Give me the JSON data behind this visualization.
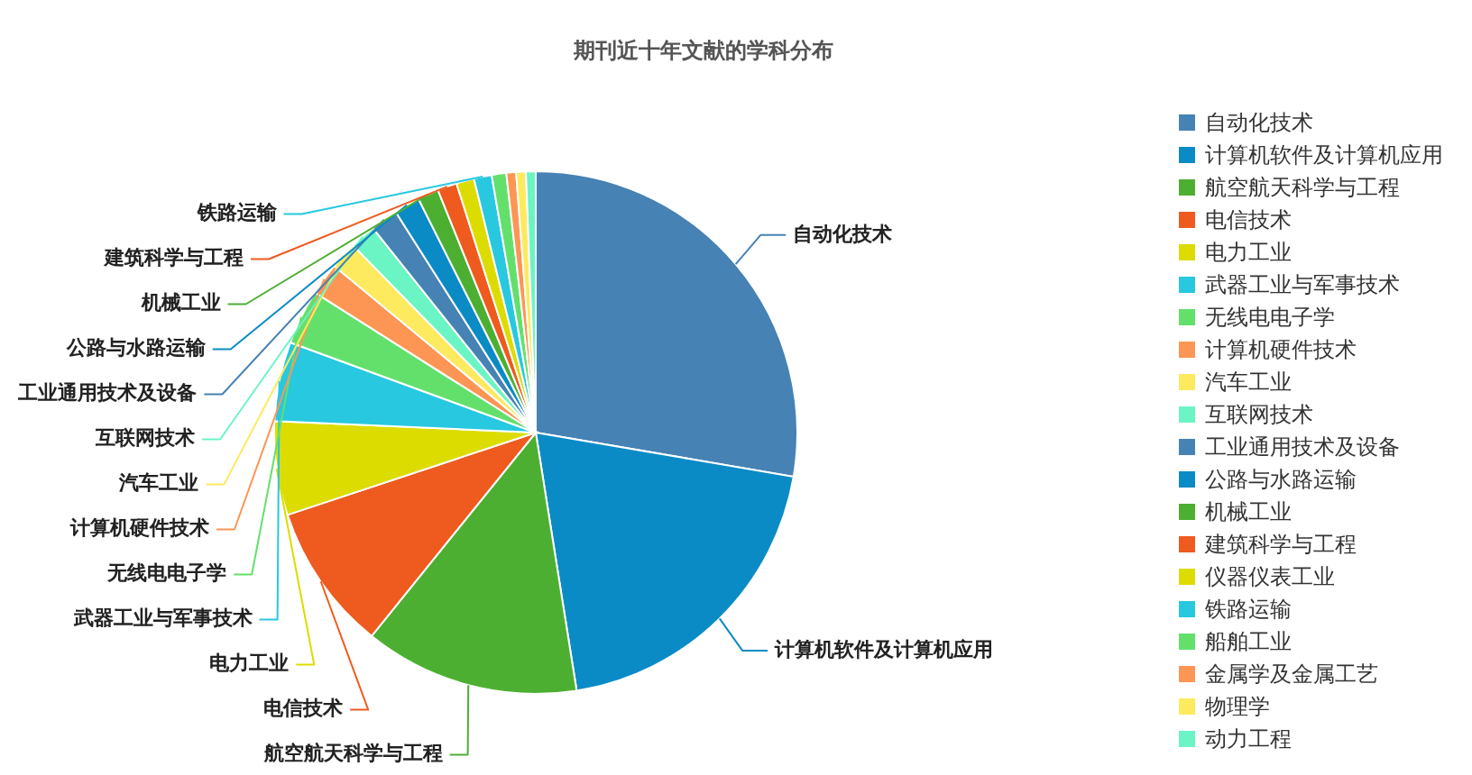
{
  "chart_data": {
    "type": "pie",
    "title": "期刊近十年文献的学科分布",
    "categories": [
      "自动化技术",
      "计算机软件及计算机应用",
      "航空航天科学与工程",
      "电信技术",
      "电力工业",
      "武器工业与军事技术",
      "无线电电子学",
      "计算机硬件技术",
      "汽车工业",
      "互联网技术",
      "工业通用技术及设备",
      "公路与水路运输",
      "机械工业",
      "建筑科学与工程",
      "仪器仪表工业",
      "铁路运输",
      "船舶工业",
      "金属学及金属工艺",
      "物理学",
      "动力工程"
    ],
    "values": [
      27.7,
      19.8,
      13.3,
      9.1,
      5.8,
      4.9,
      3.4,
      2.0,
      1.7,
      1.6,
      1.7,
      1.6,
      1.3,
      1.2,
      1.1,
      1.1,
      0.9,
      0.6,
      0.6,
      0.6
    ],
    "colors": [
      "#4682b4",
      "#0b8bc6",
      "#4daf32",
      "#ef5a1f",
      "#dcdc00",
      "#27c8e0",
      "#63e06c",
      "#fd9554",
      "#fdea5e",
      "#6bf4c4",
      "#4682b4",
      "#0b8bc6",
      "#4daf32",
      "#ef5a1f",
      "#dcdc00",
      "#27c8e0",
      "#63e06c",
      "#fd9554",
      "#fdea5e",
      "#6bf4c4"
    ],
    "value_labels": [
      "自动化技术",
      "计算机软件及计算机应用",
      "航空航天科学与工程",
      "电信技术",
      "电力工业",
      "武器工业与军事技术",
      "无线电电子学",
      "计算机硬件技术",
      "汽车工业",
      "互联网技术",
      "工业通用技术及设备",
      "公路与水路运输",
      "机械工业",
      "建筑科学与工程",
      null,
      "铁路运输",
      null,
      null,
      null,
      null
    ],
    "legend": "right"
  }
}
